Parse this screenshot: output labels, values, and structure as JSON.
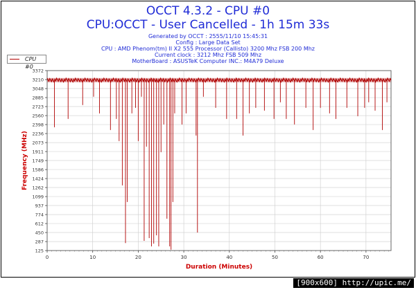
{
  "header": {
    "title": "OCCT 4.3.2 - CPU #0",
    "subtitle": "CPU:OCCT - User Cancelled - 1h 15m 33s",
    "info_lines": [
      "Generated by OCCT : 2555/11/10 15:45:31",
      "Config : Large Data Set",
      "CPU : AMD Phenom(tm) II X2 555 Processor (Callisto) 3200 Mhz FSB 200 Mhz",
      "Current clock : 3212 Mhz FSB 509 Mhz",
      "MotherBoard : ASUSTeK Computer INC.: M4A79 Deluxe"
    ]
  },
  "badge": "[900x600] http://upic.me/",
  "colors": {
    "title": "#1f2bd6",
    "axis_label": "#cc0000",
    "series": "#b00000",
    "grid": "#cccccc"
  },
  "chart_data": {
    "type": "line",
    "title": "",
    "xlabel": "Duration (Minutes)",
    "ylabel": "Frequency (MHz)",
    "xlim": [
      0,
      75.5
    ],
    "ylim": [
      125,
      3372
    ],
    "grid": true,
    "legend_placement": "top-left",
    "x_ticks": [
      "0",
      "10",
      "20",
      "30",
      "40",
      "50",
      "60",
      "70"
    ],
    "y_ticks": [
      "3372",
      "3210",
      "3048",
      "2885",
      "2723",
      "2560",
      "2398",
      "2236",
      "2073",
      "1911",
      "1749",
      "1586",
      "1424",
      "1262",
      "1099",
      "937",
      "774",
      "612",
      "450",
      "287",
      "125"
    ],
    "series": [
      {
        "name": "CPU #0",
        "baseline": 3200,
        "dips": [
          [
            1.6,
            2350
          ],
          [
            4.6,
            2500
          ],
          [
            7.8,
            2750
          ],
          [
            10.2,
            2900
          ],
          [
            11.5,
            2600
          ],
          [
            13.9,
            2300
          ],
          [
            15.2,
            2500
          ],
          [
            15.8,
            2100
          ],
          [
            16.5,
            1300
          ],
          [
            17.2,
            260
          ],
          [
            17.6,
            1000
          ],
          [
            18.6,
            2600
          ],
          [
            19.4,
            2700
          ],
          [
            20.0,
            2100
          ],
          [
            20.7,
            2900
          ],
          [
            21.3,
            300
          ],
          [
            21.8,
            2000
          ],
          [
            22.4,
            350
          ],
          [
            22.9,
            200
          ],
          [
            23.4,
            250
          ],
          [
            24.0,
            400
          ],
          [
            24.5,
            200
          ],
          [
            25.0,
            1900
          ],
          [
            25.6,
            2400
          ],
          [
            26.3,
            700
          ],
          [
            26.9,
            200
          ],
          [
            27.2,
            140
          ],
          [
            27.6,
            1000
          ],
          [
            28.0,
            2600
          ],
          [
            29.6,
            2400
          ],
          [
            30.5,
            2600
          ],
          [
            32.7,
            2200
          ],
          [
            33.0,
            450
          ],
          [
            34.3,
            2900
          ],
          [
            37.0,
            2700
          ],
          [
            39.4,
            2500
          ],
          [
            41.6,
            2500
          ],
          [
            43.0,
            2200
          ],
          [
            44.4,
            2600
          ],
          [
            45.8,
            2700
          ],
          [
            47.7,
            2650
          ],
          [
            49.8,
            2500
          ],
          [
            51.2,
            2800
          ],
          [
            52.5,
            2500
          ],
          [
            54.3,
            2400
          ],
          [
            56.8,
            2700
          ],
          [
            58.4,
            2300
          ],
          [
            60.0,
            2700
          ],
          [
            62.0,
            2600
          ],
          [
            63.4,
            2500
          ],
          [
            65.8,
            2700
          ],
          [
            68.2,
            2550
          ],
          [
            69.7,
            2700
          ],
          [
            70.6,
            2800
          ],
          [
            72.0,
            2650
          ],
          [
            73.6,
            2300
          ],
          [
            74.6,
            2800
          ]
        ]
      }
    ]
  }
}
